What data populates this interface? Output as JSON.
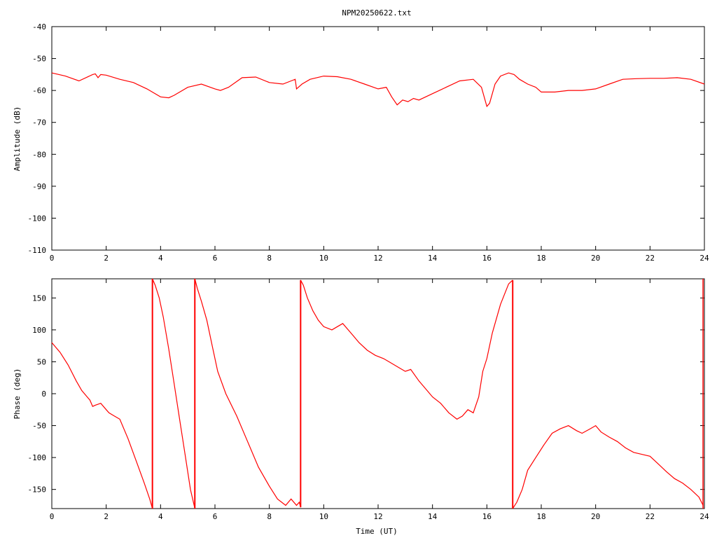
{
  "chart_data": [
    {
      "type": "line",
      "title": "NPM20250622.txt",
      "xlabel": "",
      "ylabel": "Amplitude (dB)",
      "xlim": [
        0,
        24
      ],
      "ylim": [
        -110,
        -40
      ],
      "xticks": [
        "0",
        "2",
        "4",
        "6",
        "8",
        "10",
        "12",
        "14",
        "16",
        "18",
        "20",
        "22",
        "24"
      ],
      "yticks": [
        "-40",
        "-50",
        "-60",
        "-70",
        "-80",
        "-90",
        "-100",
        "-110"
      ],
      "grid": false,
      "color": "#ff0000",
      "x": [
        0,
        0.5,
        1.0,
        1.5,
        1.6,
        1.7,
        1.8,
        2.0,
        2.5,
        3.0,
        3.5,
        4.0,
        4.3,
        4.5,
        5.0,
        5.5,
        6.0,
        6.2,
        6.5,
        7.0,
        7.5,
        8.0,
        8.5,
        8.8,
        8.95,
        9.0,
        9.2,
        9.5,
        10.0,
        10.5,
        11.0,
        11.5,
        12.0,
        12.3,
        12.5,
        12.7,
        12.9,
        13.1,
        13.3,
        13.5,
        14.0,
        14.5,
        15.0,
        15.5,
        15.8,
        16.0,
        16.1,
        16.3,
        16.5,
        16.8,
        17.0,
        17.2,
        17.5,
        17.8,
        18.0,
        18.5,
        19.0,
        19.5,
        20.0,
        20.5,
        21.0,
        21.5,
        22.0,
        22.5,
        23.0,
        23.5,
        24.0
      ],
      "values": [
        -54.5,
        -55.5,
        -57,
        -55,
        -54.8,
        -56,
        -55,
        -55.2,
        -56.5,
        -57.5,
        -59.5,
        -62,
        -62.3,
        -61.5,
        -59,
        -58,
        -59.5,
        -60,
        -59,
        -56,
        -55.8,
        -57.5,
        -58,
        -57,
        -56.5,
        -59.5,
        -58,
        -56.5,
        -55.5,
        -55.7,
        -56.5,
        -58,
        -59.5,
        -59,
        -62,
        -64.5,
        -63,
        -63.5,
        -62.5,
        -63,
        -61,
        -59,
        -57,
        -56.5,
        -59,
        -65,
        -64,
        -58,
        -55.5,
        -54.5,
        -55,
        -56.5,
        -58,
        -59,
        -60.5,
        -60.5,
        -60,
        -60,
        -59.5,
        -58,
        -56.5,
        -56.3,
        -56.2,
        -56.2,
        -56,
        -56.5,
        -58
      ]
    },
    {
      "type": "line",
      "title": "",
      "xlabel": "Time (UT)",
      "ylabel": "Phase (deg)",
      "xlim": [
        0,
        24
      ],
      "ylim": [
        -180,
        180
      ],
      "xticks": [
        "0",
        "2",
        "4",
        "6",
        "8",
        "10",
        "12",
        "14",
        "16",
        "18",
        "20",
        "22",
        "24"
      ],
      "yticks": [
        "150",
        "100",
        "50",
        "0",
        "-50",
        "-100",
        "-150"
      ],
      "grid": false,
      "color": "#ff0000",
      "segments": [
        {
          "x": [
            0,
            0.3,
            0.6,
            0.9,
            1.1,
            1.3,
            1.4,
            1.5,
            1.6,
            1.8,
            2.0,
            2.1,
            2.3,
            2.5,
            2.8,
            3.1,
            3.4,
            3.6,
            3.7
          ],
          "values": [
            80,
            65,
            45,
            20,
            5,
            -5,
            -10,
            -20,
            -18,
            -15,
            -25,
            -30,
            -35,
            -40,
            -70,
            -105,
            -140,
            -165,
            -180
          ]
        },
        {
          "x": [
            3.7,
            3.8,
            3.95,
            4.1,
            4.3,
            4.5,
            4.7,
            4.9,
            5.1,
            5.26
          ],
          "values": [
            180,
            170,
            150,
            120,
            70,
            15,
            -40,
            -95,
            -150,
            -180
          ]
        },
        {
          "x": [
            5.26,
            5.35,
            5.5,
            5.7,
            5.9,
            6.1,
            6.4,
            6.8,
            7.2,
            7.6,
            8.0,
            8.3,
            8.6,
            8.8,
            9.0,
            9.1,
            9.15
          ],
          "values": [
            180,
            165,
            145,
            115,
            75,
            35,
            0,
            -35,
            -75,
            -115,
            -145,
            -165,
            -175,
            -165,
            -175,
            -170,
            -178
          ]
        },
        {
          "x": [
            9.15,
            9.25,
            9.4,
            9.6,
            9.8,
            10.0,
            10.3,
            10.5,
            10.7,
            11.0,
            11.3,
            11.6,
            11.9,
            12.2,
            12.4,
            12.6,
            12.8,
            13.0,
            13.2,
            13.5,
            13.8,
            14.0,
            14.3,
            14.6,
            14.9,
            15.1,
            15.3,
            15.5,
            15.7,
            15.85,
            16.0,
            16.2,
            16.5,
            16.8,
            16.95
          ],
          "values": [
            178,
            170,
            150,
            130,
            115,
            105,
            100,
            105,
            110,
            95,
            80,
            68,
            60,
            55,
            50,
            45,
            40,
            35,
            38,
            20,
            5,
            -5,
            -15,
            -30,
            -40,
            -35,
            -25,
            -30,
            -5,
            35,
            55,
            95,
            140,
            172,
            178
          ]
        },
        {
          "x": [
            16.95,
            17.1,
            17.3,
            17.5,
            17.8,
            18.1,
            18.4,
            18.7,
            19.0,
            19.3,
            19.5,
            19.8,
            20.0,
            20.2,
            20.5,
            20.8,
            21.1,
            21.4,
            21.7,
            22.0,
            22.3,
            22.6,
            22.9,
            23.2,
            23.5,
            23.8,
            23.95
          ],
          "values": [
            -180,
            -170,
            -150,
            -120,
            -100,
            -80,
            -62,
            -55,
            -50,
            -58,
            -62,
            -55,
            -50,
            -60,
            -68,
            -75,
            -85,
            -92,
            -95,
            -98,
            -110,
            -122,
            -133,
            -140,
            -150,
            -162,
            -175
          ]
        }
      ]
    }
  ]
}
